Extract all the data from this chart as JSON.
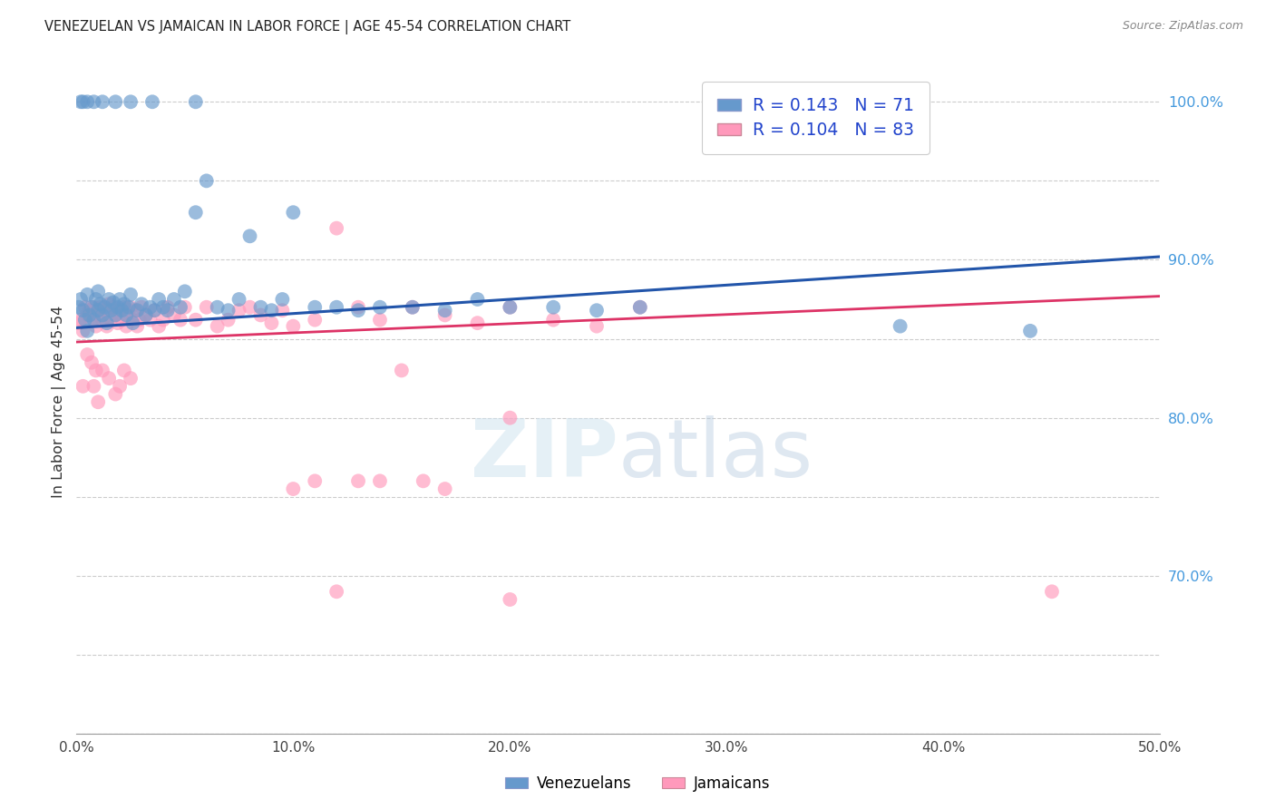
{
  "title": "VENEZUELAN VS JAMAICAN IN LABOR FORCE | AGE 45-54 CORRELATION CHART",
  "source": "Source: ZipAtlas.com",
  "ylabel": "In Labor Force | Age 45-54",
  "x_min": 0.0,
  "x_max": 0.5,
  "y_min": 0.6,
  "y_max": 1.02,
  "x_ticks": [
    0.0,
    0.1,
    0.2,
    0.3,
    0.4,
    0.5
  ],
  "x_tick_labels": [
    "0.0%",
    "10.0%",
    "20.0%",
    "30.0%",
    "40.0%",
    "50.0%"
  ],
  "y_ticks": [
    0.6,
    0.65,
    0.7,
    0.75,
    0.8,
    0.85,
    0.9,
    0.95,
    1.0
  ],
  "y_tick_labels_right": [
    "",
    "",
    "70.0%",
    "",
    "80.0%",
    "",
    "90.0%",
    "",
    "100.0%"
  ],
  "venezuelan_color": "#6699cc",
  "jamaican_color": "#ff99bb",
  "trend_venezuelan_color": "#2255aa",
  "trend_jamaican_color": "#dd3366",
  "R_venezuelan": 0.143,
  "N_venezuelan": 71,
  "R_jamaican": 0.104,
  "N_jamaican": 83,
  "legend_label_venezuelan": "Venezuelans",
  "legend_label_jamaican": "Jamaicans",
  "watermark": "ZIPatlas",
  "venezuelan_x": [
    0.001,
    0.002,
    0.003,
    0.004,
    0.005,
    0.005,
    0.006,
    0.007,
    0.008,
    0.009,
    0.01,
    0.01,
    0.011,
    0.012,
    0.013,
    0.014,
    0.015,
    0.016,
    0.017,
    0.018,
    0.019,
    0.02,
    0.021,
    0.022,
    0.023,
    0.024,
    0.025,
    0.026,
    0.028,
    0.03,
    0.032,
    0.034,
    0.036,
    0.038,
    0.04,
    0.042,
    0.045,
    0.048,
    0.05,
    0.055,
    0.06,
    0.065,
    0.07,
    0.075,
    0.08,
    0.085,
    0.09,
    0.095,
    0.1,
    0.11,
    0.12,
    0.13,
    0.14,
    0.155,
    0.17,
    0.185,
    0.2,
    0.22,
    0.24,
    0.26,
    0.055,
    0.035,
    0.025,
    0.018,
    0.012,
    0.008,
    0.005,
    0.003,
    0.002,
    0.44,
    0.38
  ],
  "venezuelan_y": [
    0.87,
    0.875,
    0.868,
    0.862,
    0.855,
    0.878,
    0.865,
    0.87,
    0.862,
    0.875,
    0.868,
    0.88,
    0.872,
    0.865,
    0.87,
    0.86,
    0.875,
    0.868,
    0.873,
    0.865,
    0.87,
    0.875,
    0.868,
    0.872,
    0.865,
    0.87,
    0.878,
    0.86,
    0.868,
    0.872,
    0.865,
    0.87,
    0.868,
    0.875,
    0.87,
    0.868,
    0.875,
    0.87,
    0.88,
    0.93,
    0.95,
    0.87,
    0.868,
    0.875,
    0.915,
    0.87,
    0.868,
    0.875,
    0.93,
    0.87,
    0.87,
    0.868,
    0.87,
    0.87,
    0.868,
    0.875,
    0.87,
    0.87,
    0.868,
    0.87,
    1.0,
    1.0,
    1.0,
    1.0,
    1.0,
    1.0,
    1.0,
    1.0,
    1.0,
    0.855,
    0.858
  ],
  "jamaican_x": [
    0.001,
    0.002,
    0.003,
    0.004,
    0.005,
    0.006,
    0.007,
    0.008,
    0.009,
    0.01,
    0.011,
    0.012,
    0.013,
    0.014,
    0.015,
    0.016,
    0.017,
    0.018,
    0.019,
    0.02,
    0.021,
    0.022,
    0.023,
    0.024,
    0.025,
    0.026,
    0.027,
    0.028,
    0.029,
    0.03,
    0.032,
    0.034,
    0.036,
    0.038,
    0.04,
    0.042,
    0.045,
    0.048,
    0.05,
    0.055,
    0.06,
    0.065,
    0.07,
    0.075,
    0.08,
    0.085,
    0.09,
    0.095,
    0.1,
    0.11,
    0.12,
    0.13,
    0.14,
    0.155,
    0.17,
    0.185,
    0.2,
    0.22,
    0.24,
    0.26,
    0.008,
    0.01,
    0.012,
    0.015,
    0.018,
    0.02,
    0.022,
    0.025,
    0.005,
    0.007,
    0.009,
    0.003,
    0.45,
    0.2,
    0.16,
    0.15,
    0.13,
    0.11,
    0.2,
    0.17,
    0.14,
    0.12,
    0.1
  ],
  "jamaican_y": [
    0.86,
    0.862,
    0.855,
    0.87,
    0.865,
    0.868,
    0.862,
    0.87,
    0.858,
    0.865,
    0.87,
    0.862,
    0.868,
    0.858,
    0.872,
    0.862,
    0.87,
    0.865,
    0.86,
    0.868,
    0.862,
    0.87,
    0.858,
    0.865,
    0.87,
    0.862,
    0.868,
    0.858,
    0.862,
    0.87,
    0.865,
    0.862,
    0.868,
    0.858,
    0.862,
    0.87,
    0.865,
    0.862,
    0.87,
    0.862,
    0.87,
    0.858,
    0.862,
    0.868,
    0.87,
    0.865,
    0.86,
    0.868,
    0.858,
    0.862,
    0.92,
    0.87,
    0.862,
    0.87,
    0.865,
    0.86,
    0.87,
    0.862,
    0.858,
    0.87,
    0.82,
    0.81,
    0.83,
    0.825,
    0.815,
    0.82,
    0.83,
    0.825,
    0.84,
    0.835,
    0.83,
    0.82,
    0.69,
    0.8,
    0.76,
    0.83,
    0.76,
    0.76,
    0.685,
    0.755,
    0.76,
    0.69,
    0.755
  ]
}
